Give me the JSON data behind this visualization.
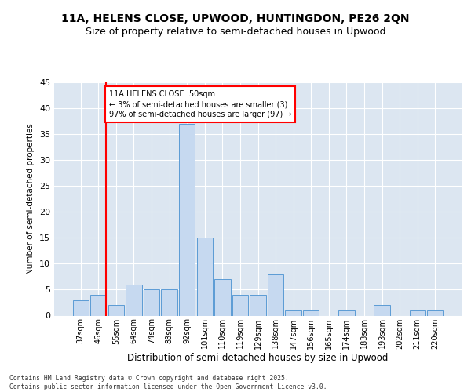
{
  "title1": "11A, HELENS CLOSE, UPWOOD, HUNTINGDON, PE26 2QN",
  "title2": "Size of property relative to semi-detached houses in Upwood",
  "xlabel": "Distribution of semi-detached houses by size in Upwood",
  "ylabel": "Number of semi-detached properties",
  "categories": [
    "37sqm",
    "46sqm",
    "55sqm",
    "64sqm",
    "74sqm",
    "83sqm",
    "92sqm",
    "101sqm",
    "110sqm",
    "119sqm",
    "129sqm",
    "138sqm",
    "147sqm",
    "156sqm",
    "165sqm",
    "174sqm",
    "183sqm",
    "193sqm",
    "202sqm",
    "211sqm",
    "220sqm"
  ],
  "values": [
    3,
    4,
    2,
    6,
    5,
    5,
    37,
    15,
    7,
    4,
    4,
    8,
    1,
    1,
    0,
    1,
    0,
    2,
    0,
    1,
    1
  ],
  "bar_color": "#c6d9f0",
  "bar_edge_color": "#5b9bd5",
  "annotation_text": "11A HELENS CLOSE: 50sqm\n← 3% of semi-detached houses are smaller (3)\n97% of semi-detached houses are larger (97) →",
  "annotation_box_color": "white",
  "annotation_box_edge_color": "red",
  "vline_color": "red",
  "ylim": [
    0,
    45
  ],
  "bg_color": "#dce6f1",
  "footer_text": "Contains HM Land Registry data © Crown copyright and database right 2025.\nContains public sector information licensed under the Open Government Licence v3.0.",
  "title1_fontsize": 10,
  "title2_fontsize": 9
}
